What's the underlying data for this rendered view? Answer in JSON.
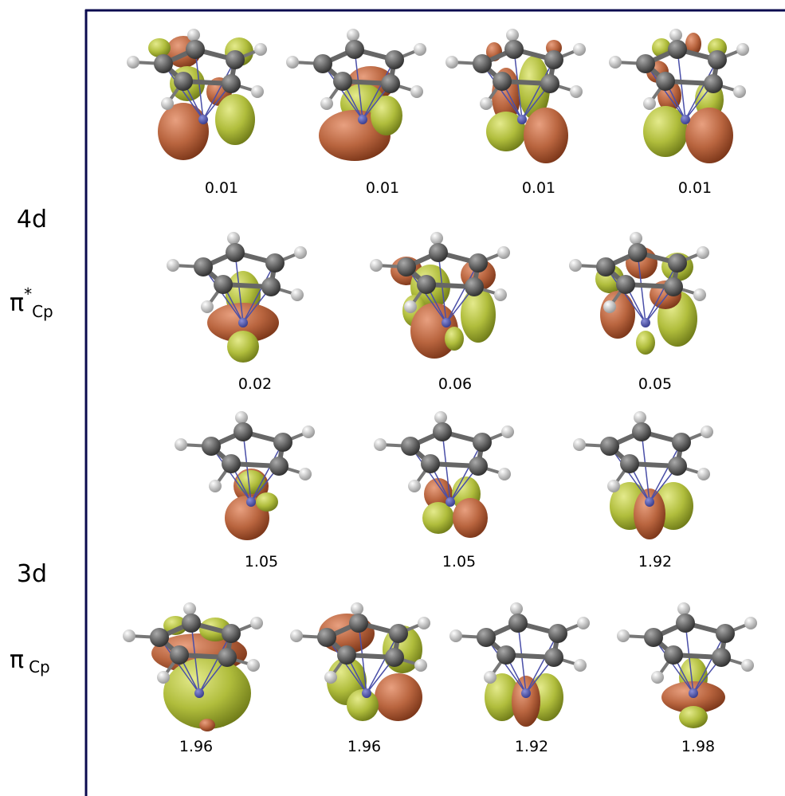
{
  "side_labels": [
    {
      "text": "4d"
    },
    {
      "base": "π",
      "sup": "*",
      "sub": "Cp"
    },
    {
      "text": "3d"
    },
    {
      "base": "π",
      "sub": "Cp"
    }
  ],
  "rows": [
    {
      "occupations": [
        "0.01",
        "0.01",
        "0.01",
        "0.01"
      ]
    },
    {
      "occupations": [
        "0.02",
        "0.06",
        "0.05"
      ]
    },
    {
      "occupations": [
        "1.05",
        "1.05",
        "1.92"
      ]
    },
    {
      "occupations": [
        "1.96",
        "1.96",
        "1.92",
        "1.98"
      ]
    }
  ]
}
